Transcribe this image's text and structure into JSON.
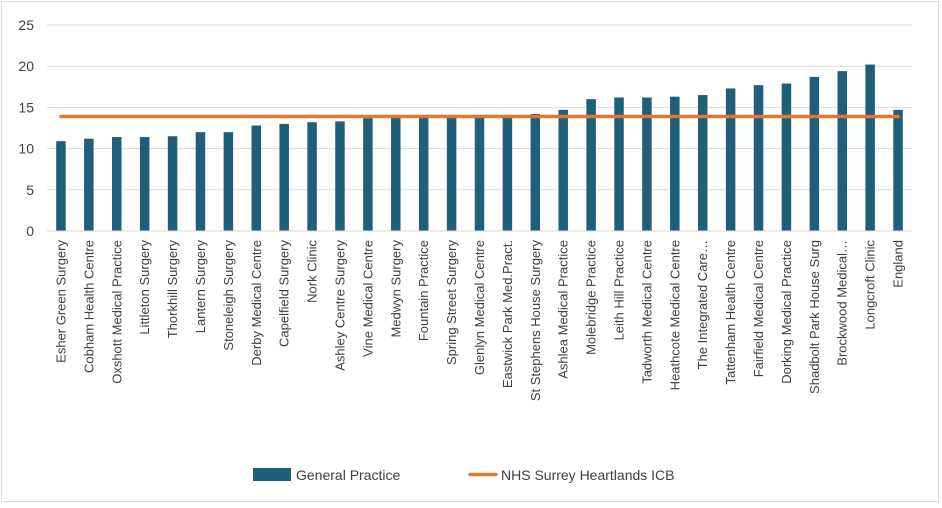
{
  "chart_data": {
    "type": "bar",
    "title": "",
    "xlabel": "",
    "ylabel": "",
    "ylim": [
      0,
      25
    ],
    "yticks": [
      0,
      5,
      10,
      15,
      20,
      25
    ],
    "grid": true,
    "legend_position": "bottom",
    "categories": [
      "Esher Green Surgery",
      "Cobham Health Centre",
      "Oxshott Medical Practice",
      "Littleton Surgery",
      "Thorkhill Surgery",
      "Lantern Surgery",
      "Stoneleigh Surgery",
      "Derby Medical Centre",
      "Capelfield Surgery",
      "Nork Clinic",
      "Ashley Centre Surgery",
      "Vine Medical Centre",
      "Medwyn Surgery",
      "Fountain Practice",
      "Spring Street Surgery",
      "Glenlyn Medical Centre",
      "Eastwick Park Med.Pract.",
      "St Stephens House Surgery",
      "Ashlea Medical Practice",
      "Molebridge Practice",
      "Leith Hill Practice",
      "Tadworth Medical Centre",
      "Heathcote Medical Centre",
      "The Integrated Care…",
      "Tattenham Health Centre",
      "Fairfield Medical Centre",
      "Dorking Medical Practice",
      "Shadbolt Park House Surg",
      "Brockwood Medical…",
      "Longcroft Clinic",
      "England"
    ],
    "series": [
      {
        "name": "General Practice",
        "kind": "bar",
        "color": "#1f5f7a",
        "values": [
          10.9,
          11.2,
          11.4,
          11.4,
          11.5,
          12.0,
          12.0,
          12.8,
          13.0,
          13.2,
          13.3,
          13.7,
          13.8,
          13.8,
          13.8,
          13.9,
          14.0,
          14.2,
          14.7,
          16.0,
          16.2,
          16.2,
          16.3,
          16.5,
          17.3,
          17.7,
          17.9,
          18.7,
          19.4,
          20.2,
          14.7
        ]
      },
      {
        "name": "NHS Surrey Heartlands ICB",
        "kind": "line",
        "color": "#e0782f",
        "value": 13.9
      }
    ]
  }
}
